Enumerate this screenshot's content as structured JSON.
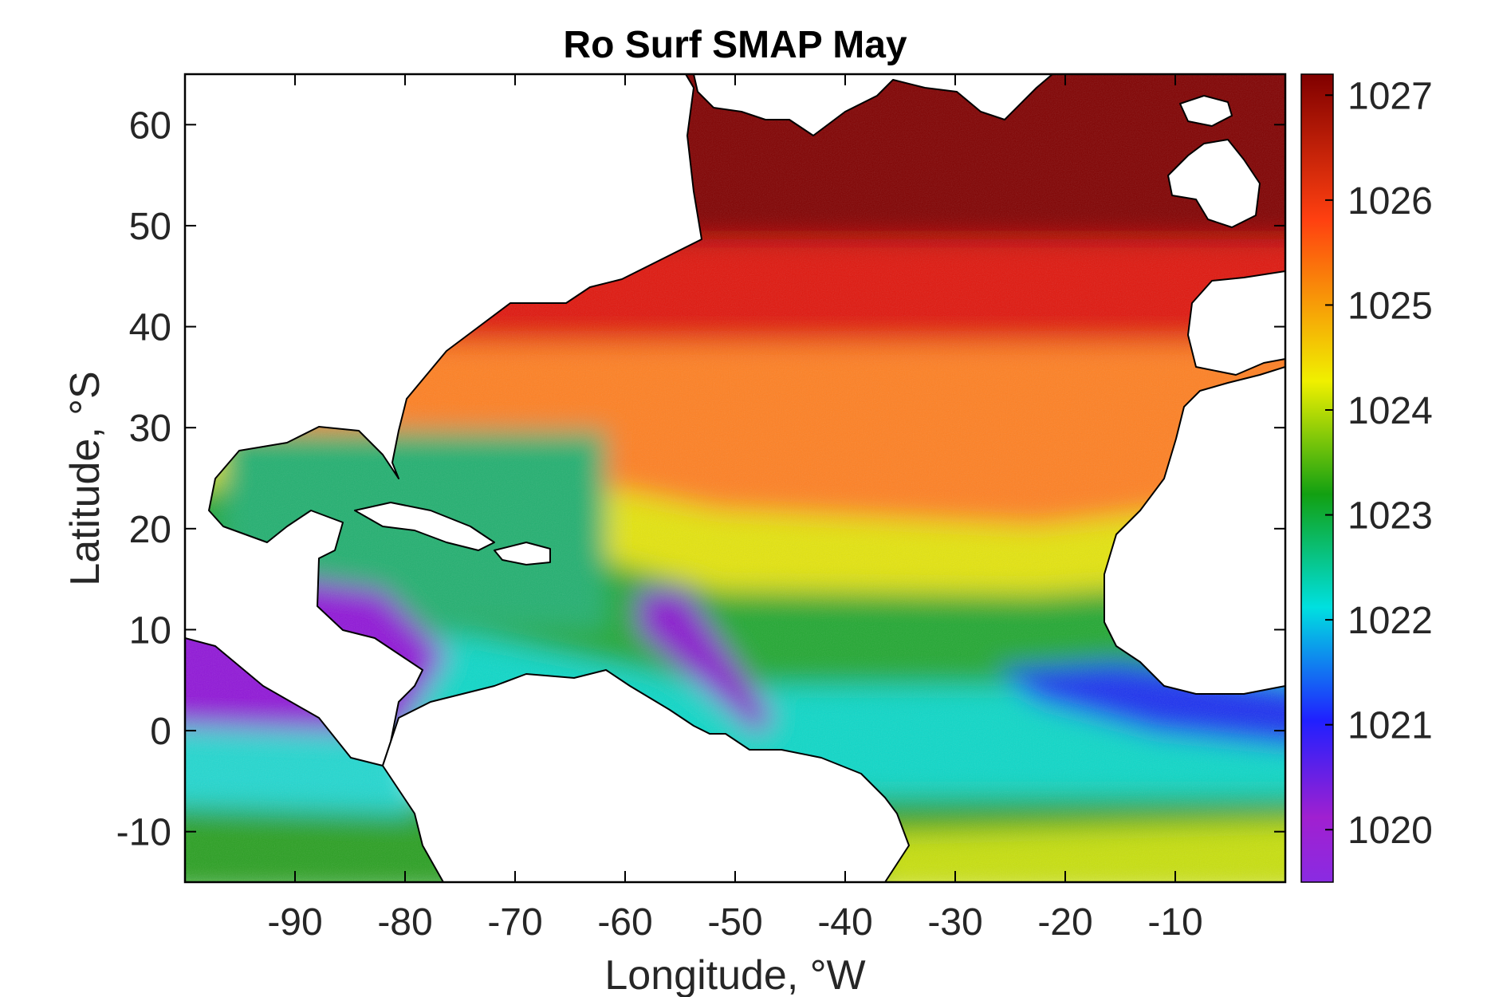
{
  "chart_data": {
    "type": "heatmap",
    "title": "Ro Surf SMAP May",
    "xlabel": "Longitude, °W",
    "ylabel": "Latitude, °S",
    "xlim": [
      -100,
      0
    ],
    "ylim": [
      -15,
      65
    ],
    "xticks": [
      -90,
      -80,
      -70,
      -60,
      -50,
      -40,
      -30,
      -20,
      -10
    ],
    "xtick_labels": [
      "-90",
      "-80",
      "-70",
      "-60",
      "-50",
      "-40",
      "-30",
      "-20",
      "-10"
    ],
    "yticks": [
      -10,
      0,
      10,
      20,
      30,
      40,
      50,
      60
    ],
    "ytick_labels": [
      "-10",
      "0",
      "10",
      "20",
      "30",
      "40",
      "50",
      "60"
    ],
    "colorbar": {
      "range": [
        1019.5,
        1027.2
      ],
      "ticks": [
        1020,
        1021,
        1022,
        1023,
        1024,
        1025,
        1026,
        1027
      ],
      "tick_labels": [
        "1020",
        "1021",
        "1022",
        "1023",
        "1024",
        "1025",
        "1026",
        "1027"
      ],
      "colors": [
        "#8a2be2",
        "#a020d0",
        "#2020ff",
        "#00e0e0",
        "#12a012",
        "#f0f000",
        "#ff4010",
        "#800000"
      ]
    },
    "grid": false,
    "land_color": "#ffffff",
    "coastline_color": "#000000"
  }
}
